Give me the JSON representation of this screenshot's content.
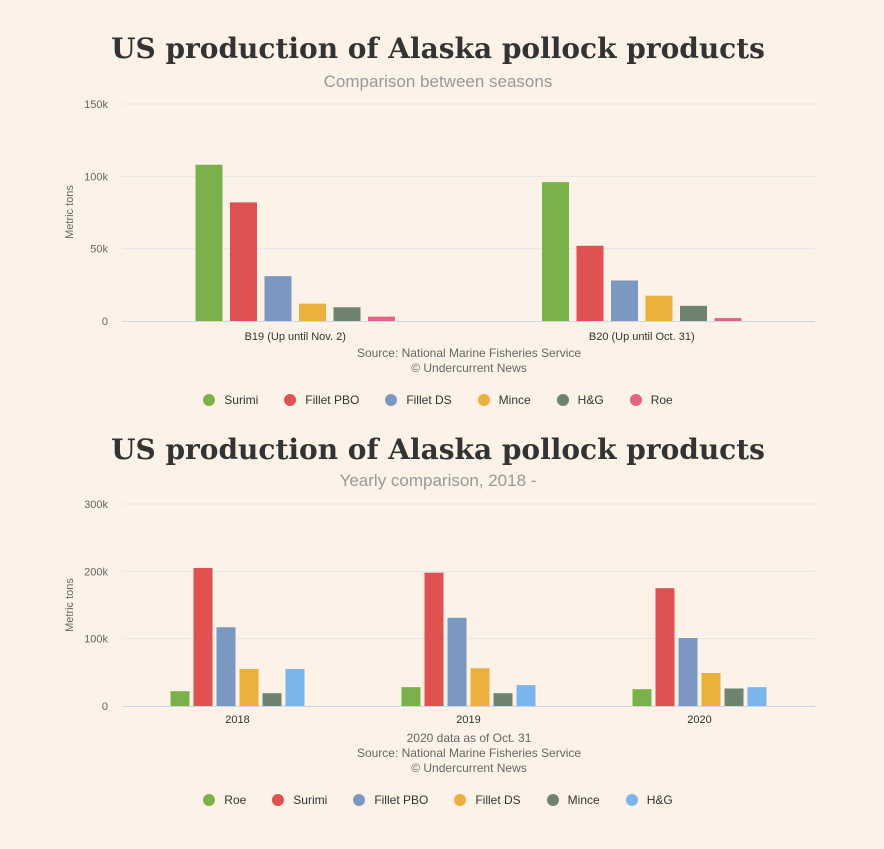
{
  "chart_data": [
    {
      "type": "bar",
      "title": "US production of Alaska pollock products",
      "subtitle": "Comparison between seasons",
      "ylabel": "Metric tons",
      "ylim": [
        0,
        150000
      ],
      "yticks": [
        0,
        50000,
        100000,
        150000
      ],
      "ytick_labels": [
        "0",
        "50k",
        "100k",
        "150k"
      ],
      "categories": [
        "B19 (Up until Nov. 2)",
        "B20 (Up until Oct. 31)"
      ],
      "series": [
        {
          "name": "Surimi",
          "color": "#7ab14a",
          "values": [
            108000,
            96000
          ]
        },
        {
          "name": "Fillet PBO",
          "color": "#e05252",
          "values": [
            82000,
            52000
          ]
        },
        {
          "name": "Fillet DS",
          "color": "#7d98c0",
          "values": [
            31000,
            28000
          ]
        },
        {
          "name": "Mince",
          "color": "#ecb03f",
          "values": [
            12000,
            17500
          ]
        },
        {
          "name": "H&G",
          "color": "#6f8470",
          "values": [
            9500,
            10500
          ]
        },
        {
          "name": "Roe",
          "color": "#e36486",
          "values": [
            3000,
            2000
          ]
        }
      ],
      "notes": [
        "Source: National Marine Fisheries Service",
        "© Undercurrent News"
      ],
      "grid": true,
      "legend": "bottom"
    },
    {
      "type": "bar",
      "title": "US production of Alaska pollock products",
      "subtitle": "Yearly comparison, 2018 -",
      "ylabel": "Metric tons",
      "ylim": [
        0,
        300000
      ],
      "yticks": [
        0,
        100000,
        200000,
        300000
      ],
      "ytick_labels": [
        "0",
        "100k",
        "200k",
        "300k"
      ],
      "categories": [
        "2018",
        "2019",
        "2020"
      ],
      "series": [
        {
          "name": "Roe",
          "color": "#7ab14a",
          "values": [
            22000,
            28000,
            25000
          ]
        },
        {
          "name": "Surimi",
          "color": "#e05252",
          "values": [
            205000,
            198000,
            175000
          ]
        },
        {
          "name": "Fillet PBO",
          "color": "#7d98c0",
          "values": [
            117000,
            131000,
            101000
          ]
        },
        {
          "name": "Fillet DS",
          "color": "#ecb03f",
          "values": [
            55000,
            56000,
            49000
          ]
        },
        {
          "name": "Mince",
          "color": "#6f8470",
          "values": [
            19000,
            19000,
            26000
          ]
        },
        {
          "name": "H&G",
          "color": "#7cb4ec",
          "values": [
            55000,
            31000,
            28000
          ]
        }
      ],
      "notes": [
        "2020 data as of Oct. 31",
        "Source: National Marine Fisheries Service",
        "© Undercurrent News"
      ],
      "grid": true,
      "legend": "bottom"
    }
  ]
}
